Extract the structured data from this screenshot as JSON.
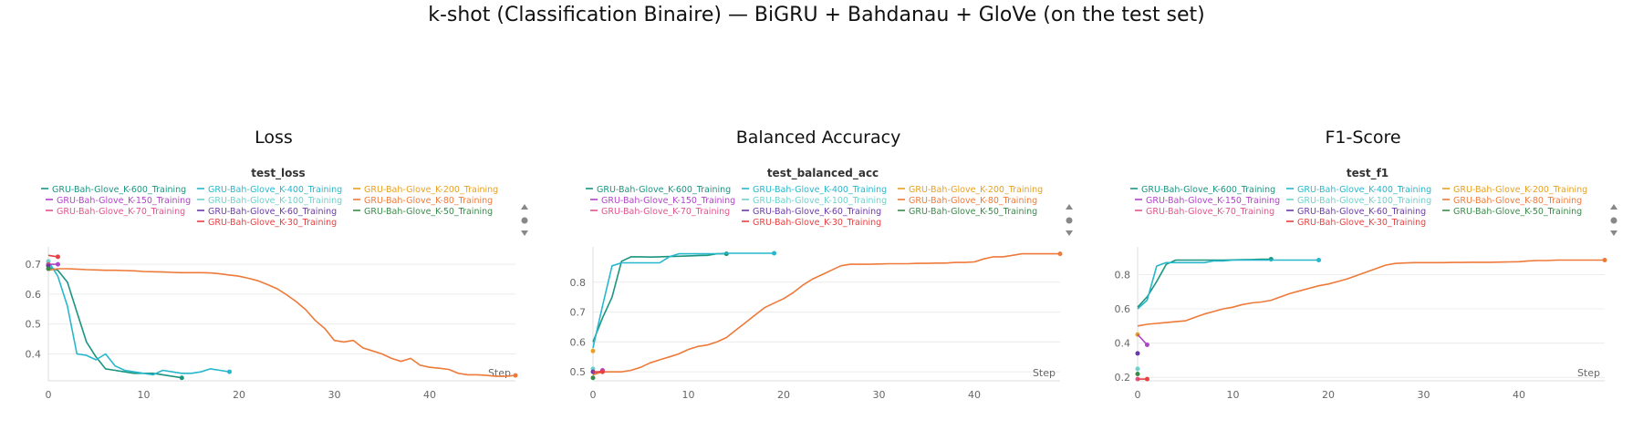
{
  "title": "k-shot (Classification Binaire) — BiGRU + Bahdanau + GloVe (on the test set)",
  "colors": {
    "K-600": "#1a9580",
    "K-400": "#27b7cc",
    "K-200": "#e8a020",
    "K-150": "#b044c8",
    "K-100": "#70d0cc",
    "K-80": "#ee7a3a",
    "K-70": "#e0548a",
    "K-60": "#6a3aa8",
    "K-50": "#3a8a4a",
    "K-30": "#e84040"
  },
  "chart_data": [
    {
      "type": "line",
      "panel_title": "Loss",
      "title": "test_loss",
      "xlabel": "Step",
      "xlim": [
        0,
        49
      ],
      "ylim": [
        0.31,
        0.74
      ],
      "xticks": [
        0,
        10,
        20,
        30,
        40
      ],
      "yticks": [
        0.4,
        0.5,
        0.6,
        0.7
      ],
      "grid": true,
      "legend": "top",
      "series": [
        {
          "name": "GRU-Bah-Glove_K-600_Training",
          "key": "K-600",
          "x": [
            0,
            1,
            2,
            3,
            4,
            5,
            6,
            7,
            8,
            9,
            10,
            11,
            12,
            13,
            14
          ],
          "y": [
            0.69,
            0.68,
            0.64,
            0.54,
            0.44,
            0.39,
            0.35,
            0.345,
            0.34,
            0.335,
            0.335,
            0.335,
            0.33,
            0.325,
            0.32
          ]
        },
        {
          "name": "GRU-Bah-Glove_K-400_Training",
          "key": "K-400",
          "x": [
            0,
            1,
            2,
            3,
            4,
            5,
            6,
            7,
            8,
            9,
            10,
            11,
            12,
            13,
            14,
            15,
            16,
            17,
            18,
            19
          ],
          "y": [
            0.71,
            0.66,
            0.56,
            0.4,
            0.395,
            0.38,
            0.4,
            0.36,
            0.345,
            0.34,
            0.335,
            0.33,
            0.345,
            0.34,
            0.335,
            0.335,
            0.34,
            0.35,
            0.345,
            0.34
          ]
        },
        {
          "name": "GRU-Bah-Glove_K-200_Training",
          "key": "K-200",
          "x": [],
          "y": []
        },
        {
          "name": "GRU-Bah-Glove_K-150_Training",
          "key": "K-150",
          "x": [
            0,
            1
          ],
          "y": [
            0.7,
            0.7
          ]
        },
        {
          "name": "GRU-Bah-Glove_K-100_Training",
          "key": "K-100",
          "x": [
            0
          ],
          "y": [
            0.71
          ]
        },
        {
          "name": "GRU-Bah-Glove_K-80_Training",
          "key": "K-80",
          "x": [
            0,
            1,
            2,
            3,
            4,
            5,
            6,
            7,
            8,
            9,
            10,
            11,
            12,
            13,
            14,
            15,
            16,
            17,
            18,
            19,
            20,
            21,
            22,
            23,
            24,
            25,
            26,
            27,
            28,
            29,
            30,
            31,
            32,
            33,
            34,
            35,
            36,
            37,
            38,
            39,
            40,
            41,
            42,
            43,
            44,
            45,
            46,
            47,
            48,
            49
          ],
          "y": [
            0.68,
            0.685,
            0.685,
            0.684,
            0.682,
            0.681,
            0.68,
            0.68,
            0.679,
            0.678,
            0.676,
            0.675,
            0.674,
            0.673,
            0.672,
            0.672,
            0.672,
            0.671,
            0.668,
            0.664,
            0.66,
            0.653,
            0.645,
            0.632,
            0.618,
            0.598,
            0.575,
            0.548,
            0.512,
            0.485,
            0.445,
            0.44,
            0.445,
            0.42,
            0.41,
            0.4,
            0.385,
            0.375,
            0.385,
            0.362,
            0.355,
            0.352,
            0.348,
            0.335,
            0.33,
            0.33,
            0.328,
            0.325,
            0.325,
            0.328
          ]
        },
        {
          "name": "GRU-Bah-Glove_K-70_Training",
          "key": "K-70",
          "x": [
            0
          ],
          "y": [
            0.7
          ]
        },
        {
          "name": "GRU-Bah-Glove_K-60_Training",
          "key": "K-60",
          "x": [
            0
          ],
          "y": [
            0.695
          ]
        },
        {
          "name": "GRU-Bah-Glove_K-50_Training",
          "key": "K-50",
          "x": [
            0
          ],
          "y": [
            0.685
          ]
        },
        {
          "name": "GRU-Bah-Glove_K-30_Training",
          "key": "K-30",
          "x": [
            0,
            1
          ],
          "y": [
            0.73,
            0.725
          ]
        }
      ]
    },
    {
      "type": "line",
      "panel_title": "Balanced Accuracy",
      "title": "test_balanced_acc",
      "xlabel": "Step",
      "xlim": [
        0,
        49
      ],
      "ylim": [
        0.47,
        0.9
      ],
      "xticks": [
        0,
        10,
        20,
        30,
        40
      ],
      "yticks": [
        0.5,
        0.6,
        0.7,
        0.8
      ],
      "grid": true,
      "legend": "top",
      "series": [
        {
          "name": "GRU-Bah-Glove_K-600_Training",
          "key": "K-600",
          "x": [
            0,
            1,
            2,
            3,
            4,
            5,
            6,
            7,
            8,
            9,
            10,
            11,
            12,
            13,
            14
          ],
          "y": [
            0.6,
            0.68,
            0.75,
            0.87,
            0.885,
            0.885,
            0.884,
            0.885,
            0.886,
            0.887,
            0.888,
            0.889,
            0.89,
            0.895,
            0.895
          ]
        },
        {
          "name": "GRU-Bah-Glove_K-400_Training",
          "key": "K-400",
          "x": [
            0,
            1,
            2,
            3,
            4,
            5,
            6,
            7,
            8,
            9,
            10,
            11,
            12,
            13,
            14,
            15,
            16,
            17,
            18,
            19
          ],
          "y": [
            0.58,
            0.72,
            0.855,
            0.865,
            0.865,
            0.865,
            0.865,
            0.865,
            0.885,
            0.895,
            0.895,
            0.895,
            0.895,
            0.895,
            0.897,
            0.897,
            0.897,
            0.897,
            0.897,
            0.897
          ]
        },
        {
          "name": "GRU-Bah-Glove_K-200_Training",
          "key": "K-200",
          "x": [
            0
          ],
          "y": [
            0.57
          ]
        },
        {
          "name": "GRU-Bah-Glove_K-150_Training",
          "key": "K-150",
          "x": [
            0,
            1
          ],
          "y": [
            0.49,
            0.505
          ]
        },
        {
          "name": "GRU-Bah-Glove_K-100_Training",
          "key": "K-100",
          "x": [
            0
          ],
          "y": [
            0.51
          ]
        },
        {
          "name": "GRU-Bah-Glove_K-80_Training",
          "key": "K-80",
          "x": [
            0,
            1,
            2,
            3,
            4,
            5,
            6,
            7,
            8,
            9,
            10,
            11,
            12,
            13,
            14,
            15,
            16,
            17,
            18,
            19,
            20,
            21,
            22,
            23,
            24,
            25,
            26,
            27,
            28,
            29,
            30,
            31,
            32,
            33,
            34,
            35,
            36,
            37,
            38,
            39,
            40,
            41,
            42,
            43,
            44,
            45,
            46,
            47,
            48,
            49
          ],
          "y": [
            0.49,
            0.5,
            0.5,
            0.5,
            0.505,
            0.515,
            0.53,
            0.54,
            0.55,
            0.56,
            0.575,
            0.585,
            0.59,
            0.6,
            0.615,
            0.64,
            0.665,
            0.69,
            0.715,
            0.73,
            0.745,
            0.765,
            0.79,
            0.81,
            0.825,
            0.84,
            0.855,
            0.86,
            0.86,
            0.86,
            0.861,
            0.862,
            0.862,
            0.862,
            0.863,
            0.863,
            0.864,
            0.864,
            0.866,
            0.866,
            0.868,
            0.878,
            0.885,
            0.885,
            0.89,
            0.895,
            0.895,
            0.895,
            0.895,
            0.895
          ]
        },
        {
          "name": "GRU-Bah-Glove_K-70_Training",
          "key": "K-70",
          "x": [
            0,
            1
          ],
          "y": [
            0.5,
            0.5
          ]
        },
        {
          "name": "GRU-Bah-Glove_K-60_Training",
          "key": "K-60",
          "x": [
            0
          ],
          "y": [
            0.5
          ]
        },
        {
          "name": "GRU-Bah-Glove_K-50_Training",
          "key": "K-50",
          "x": [
            0
          ],
          "y": [
            0.48
          ]
        },
        {
          "name": "GRU-Bah-Glove_K-30_Training",
          "key": "K-30",
          "x": [
            0,
            1
          ],
          "y": [
            0.5,
            0.5
          ]
        }
      ]
    },
    {
      "type": "line",
      "panel_title": "F1-Score",
      "title": "test_f1",
      "xlabel": "Step",
      "xlim": [
        0,
        49
      ],
      "ylim": [
        0.18,
        0.93
      ],
      "xticks": [
        0,
        10,
        20,
        30,
        40
      ],
      "yticks": [
        0.2,
        0.4,
        0.6,
        0.8
      ],
      "grid": true,
      "legend": "top",
      "series": [
        {
          "name": "GRU-Bah-Glove_K-600_Training",
          "key": "K-600",
          "x": [
            0,
            1,
            2,
            3,
            4,
            5,
            6,
            7,
            8,
            9,
            10,
            11,
            12,
            13,
            14
          ],
          "y": [
            0.61,
            0.67,
            0.76,
            0.86,
            0.885,
            0.885,
            0.885,
            0.885,
            0.885,
            0.885,
            0.886,
            0.887,
            0.888,
            0.89,
            0.89
          ]
        },
        {
          "name": "GRU-Bah-Glove_K-400_Training",
          "key": "K-400",
          "x": [
            0,
            1,
            2,
            3,
            4,
            5,
            6,
            7,
            8,
            9,
            10,
            11,
            12,
            13,
            14,
            15,
            16,
            17,
            18,
            19
          ],
          "y": [
            0.6,
            0.65,
            0.85,
            0.87,
            0.87,
            0.87,
            0.87,
            0.87,
            0.88,
            0.88,
            0.885,
            0.885,
            0.885,
            0.885,
            0.885,
            0.885,
            0.885,
            0.885,
            0.885,
            0.885
          ]
        },
        {
          "name": "GRU-Bah-Glove_K-200_Training",
          "key": "K-200",
          "x": [
            0
          ],
          "y": [
            0.45
          ]
        },
        {
          "name": "GRU-Bah-Glove_K-150_Training",
          "key": "K-150",
          "x": [
            0,
            1
          ],
          "y": [
            0.45,
            0.39
          ]
        },
        {
          "name": "GRU-Bah-Glove_K-100_Training",
          "key": "K-100",
          "x": [
            0
          ],
          "y": [
            0.25
          ]
        },
        {
          "name": "GRU-Bah-Glove_K-80_Training",
          "key": "K-80",
          "x": [
            0,
            1,
            2,
            3,
            4,
            5,
            6,
            7,
            8,
            9,
            10,
            11,
            12,
            13,
            14,
            15,
            16,
            17,
            18,
            19,
            20,
            21,
            22,
            23,
            24,
            25,
            26,
            27,
            28,
            29,
            30,
            31,
            32,
            33,
            34,
            35,
            36,
            37,
            38,
            39,
            40,
            41,
            42,
            43,
            44,
            45,
            46,
            47,
            48,
            49
          ],
          "y": [
            0.5,
            0.51,
            0.515,
            0.52,
            0.525,
            0.53,
            0.55,
            0.57,
            0.585,
            0.6,
            0.61,
            0.625,
            0.635,
            0.64,
            0.65,
            0.67,
            0.69,
            0.705,
            0.72,
            0.735,
            0.745,
            0.76,
            0.775,
            0.795,
            0.815,
            0.835,
            0.855,
            0.865,
            0.868,
            0.87,
            0.87,
            0.87,
            0.87,
            0.871,
            0.871,
            0.872,
            0.872,
            0.872,
            0.873,
            0.874,
            0.875,
            0.88,
            0.882,
            0.882,
            0.885,
            0.885,
            0.885,
            0.885,
            0.885,
            0.885
          ]
        },
        {
          "name": "GRU-Bah-Glove_K-70_Training",
          "key": "K-70",
          "x": [
            0
          ],
          "y": [
            0.19
          ]
        },
        {
          "name": "GRU-Bah-Glove_K-60_Training",
          "key": "K-60",
          "x": [
            0
          ],
          "y": [
            0.34
          ]
        },
        {
          "name": "GRU-Bah-Glove_K-50_Training",
          "key": "K-50",
          "x": [
            0
          ],
          "y": [
            0.22
          ]
        },
        {
          "name": "GRU-Bah-Glove_K-30_Training",
          "key": "K-30",
          "x": [
            0,
            1
          ],
          "y": [
            0.19,
            0.19
          ]
        }
      ]
    }
  ]
}
